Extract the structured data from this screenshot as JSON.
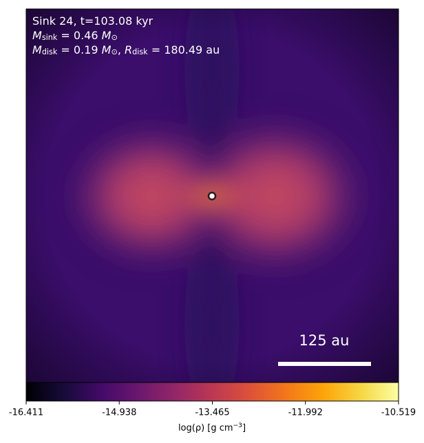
{
  "chart_data": {
    "type": "image",
    "annotations": [
      [
        {
          "text": "Sink 24, t=103.08 kyr"
        }
      ],
      [
        {
          "text": "M",
          "italic": true
        },
        {
          "text": "sink",
          "sub": true
        },
        {
          "text": " = 0.46 "
        },
        {
          "text": "M",
          "italic": true
        },
        {
          "text": "⊙",
          "sub": true
        }
      ],
      [
        {
          "text": "M",
          "italic": true
        },
        {
          "text": "disk",
          "sub": true
        },
        {
          "text": " = 0.19 "
        },
        {
          "text": "M",
          "italic": true
        },
        {
          "text": "⊙",
          "sub": true
        },
        {
          "text": ", "
        },
        {
          "text": "R",
          "italic": true
        },
        {
          "text": "disk",
          "sub": true
        },
        {
          "text": " = 180.49 au"
        }
      ]
    ],
    "scale_bar_label": "125 au",
    "colorbar": {
      "colormap": "inferno",
      "lim": [
        -16.411,
        -10.519
      ],
      "ticks": [
        -16.411,
        -14.938,
        -13.465,
        -11.992,
        -10.519
      ],
      "label": [
        {
          "text": "log(ρ) [g cm"
        },
        {
          "text": "−3",
          "sup": true
        },
        {
          "text": "]"
        }
      ]
    }
  }
}
